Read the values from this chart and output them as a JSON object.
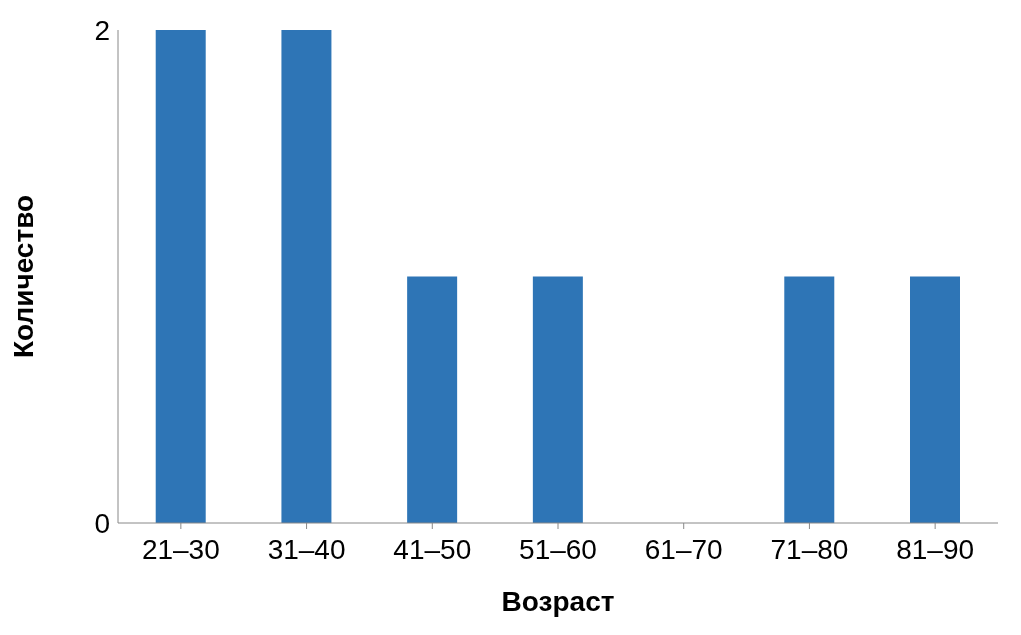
{
  "chart_data": {
    "type": "bar",
    "xlabel": "Возраст",
    "ylabel": "Количество",
    "categories": [
      "21–30",
      "31–40",
      "41–50",
      "51–60",
      "61–70",
      "71–80",
      "81–90"
    ],
    "values": [
      2,
      2,
      1,
      1,
      0,
      1,
      1
    ],
    "color": "#2e75b6",
    "ylim": [
      0,
      2
    ],
    "yticks": [
      0,
      2
    ],
    "grid": false,
    "legend": false
  }
}
